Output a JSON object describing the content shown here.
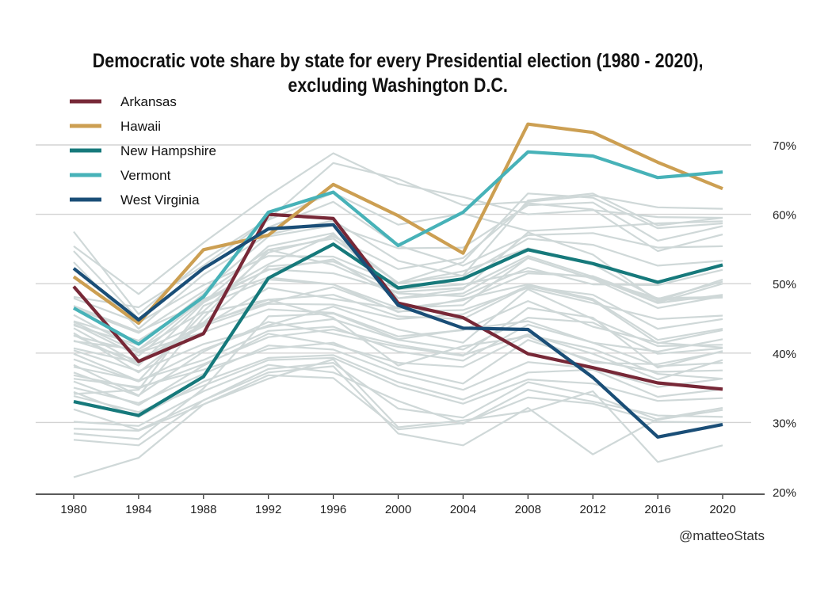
{
  "chart_data": {
    "type": "line",
    "title_line1": "Democratic vote share by state for every Presidential election (1980 - 2020),",
    "title_line2": "excluding Washington D.C.",
    "caption": "@matteoStats",
    "x": [
      1980,
      1984,
      1988,
      1992,
      1996,
      2000,
      2004,
      2008,
      2012,
      2016,
      2020
    ],
    "x_tick_labels": [
      "1980",
      "1984",
      "1988",
      "1992",
      "1996",
      "2000",
      "2004",
      "2008",
      "2012",
      "2016",
      "2020"
    ],
    "ylim": [
      20,
      75
    ],
    "y_ticks": [
      20,
      30,
      40,
      50,
      60,
      70
    ],
    "y_tick_labels": [
      "20%",
      "30%",
      "40%",
      "50%",
      "60%",
      "70%"
    ],
    "y_axis_position": "right",
    "grid": "horizontal",
    "legend_position": "top-left",
    "background_color": "#cfd8d8",
    "highlight_series": [
      {
        "name": "Arkansas",
        "color": "#772837",
        "values": [
          49.6,
          38.8,
          42.8,
          60.0,
          59.4,
          47.2,
          45.1,
          39.9,
          37.9,
          35.7,
          34.8
        ]
      },
      {
        "name": "Hawaii",
        "color": "#cc9f52",
        "values": [
          51.0,
          44.3,
          54.9,
          57.0,
          64.3,
          59.8,
          54.4,
          73.0,
          71.8,
          67.5,
          63.7
        ]
      },
      {
        "name": "New Hampshire",
        "color": "#16797b",
        "values": [
          33.0,
          31.0,
          36.6,
          50.8,
          55.7,
          49.4,
          50.7,
          54.9,
          52.9,
          50.2,
          52.7
        ]
      },
      {
        "name": "Vermont",
        "color": "#47b2b8",
        "values": [
          46.5,
          41.3,
          48.1,
          60.3,
          63.2,
          55.5,
          60.3,
          69.0,
          68.4,
          65.3,
          66.1
        ]
      },
      {
        "name": "West Virginia",
        "color": "#1a4e77",
        "values": [
          52.2,
          44.8,
          52.2,
          57.9,
          58.5,
          46.9,
          43.6,
          43.4,
          36.5,
          27.9,
          29.7
        ]
      }
    ],
    "background_series": [
      [
        57.5,
        45.6,
        53.4,
        59.3,
        67.4,
        65.1,
        61.3,
        61.8,
        62.7,
        61.0,
        60.8
      ],
      [
        55.4,
        48.5,
        55.9,
        62.7,
        68.8,
        64.4,
        62.5,
        60.0,
        60.6,
        59.6,
        59.5
      ],
      [
        54.7,
        44.9,
        52.1,
        58.1,
        61.8,
        55.5,
        52.6,
        57.0,
        57.3,
        55.2,
        55.4
      ],
      [
        53.1,
        43.5,
        51.3,
        57.1,
        59.1,
        53.3,
        51.1,
        56.5,
        55.6,
        52.6,
        53.3
      ],
      [
        48.1,
        46.6,
        52.6,
        59.2,
        63.1,
        58.5,
        60.1,
        57.6,
        58.1,
        58.7,
        59.0
      ],
      [
        44.0,
        41.2,
        48.5,
        54.9,
        56.5,
        50.1,
        51.2,
        62.0,
        63.0,
        58.4,
        59.5
      ],
      [
        45.5,
        40.5,
        46.0,
        54.5,
        56.8,
        52.1,
        53.7,
        61.6,
        60.7,
        54.7,
        57.1
      ],
      [
        46.5,
        42.9,
        48.9,
        56.8,
        58.4,
        55.1,
        55.2,
        61.3,
        61.7,
        56.2,
        58.3
      ],
      [
        44.2,
        39.6,
        47.5,
        52.8,
        57.1,
        50.1,
        53.1,
        63.0,
        62.4,
        58.0,
        58.7
      ],
      [
        42.6,
        38.2,
        47.3,
        55.4,
        57.3,
        47.9,
        49.2,
        57.4,
        54.2,
        47.5,
        50.6
      ],
      [
        47.9,
        44.4,
        49.8,
        54.0,
        53.9,
        50.0,
        51.8,
        55.1,
        52.8,
        47.8,
        50.3
      ],
      [
        46.8,
        43.1,
        47.3,
        52.1,
        51.5,
        48.8,
        49.4,
        54.0,
        51.0,
        47.3,
        50.0
      ],
      [
        44.6,
        41.8,
        47.7,
        52.0,
        53.5,
        47.9,
        48.6,
        53.7,
        50.7,
        46.5,
        48.2
      ],
      [
        42.5,
        40.2,
        44.4,
        52.5,
        53.2,
        49.2,
        49.9,
        51.8,
        50.9,
        47.2,
        48.4
      ],
      [
        40.7,
        38.6,
        43.9,
        49.4,
        47.8,
        46.4,
        47.6,
        51.5,
        51.1,
        47.6,
        48.0
      ],
      [
        41.7,
        40.5,
        47.8,
        50.9,
        49.9,
        45.9,
        47.8,
        49.9,
        47.8,
        41.9,
        43.5
      ],
      [
        41.8,
        38.9,
        44.2,
        47.7,
        48.4,
        45.3,
        44.9,
        49.6,
        48.4,
        43.5,
        44.9
      ],
      [
        42.9,
        37.2,
        44.4,
        47.3,
        49.5,
        46.0,
        46.2,
        49.4,
        47.2,
        44.9,
        45.4
      ],
      [
        43.6,
        38.5,
        43.9,
        47.1,
        47.0,
        44.9,
        45.6,
        49.7,
        47.6,
        41.4,
        43.3
      ],
      [
        44.5,
        40.1,
        43.0,
        46.3,
        45.8,
        42.4,
        43.3,
        47.5,
        43.8,
        41.5,
        40.8
      ],
      [
        39.1,
        35.9,
        40.5,
        44.0,
        46.7,
        43.4,
        41.5,
        49.2,
        44.9,
        41.0,
        41.2
      ],
      [
        40.4,
        37.4,
        41.3,
        43.8,
        44.9,
        41.9,
        40.5,
        45.1,
        44.4,
        39.9,
        40.7
      ],
      [
        38.3,
        33.9,
        40.2,
        44.5,
        42.8,
        40.9,
        39.6,
        46.5,
        45.1,
        37.9,
        40.3
      ],
      [
        38.0,
        36.1,
        39.0,
        43.2,
        43.8,
        40.2,
        38.9,
        44.1,
        41.5,
        38.1,
        38.6
      ],
      [
        36.8,
        34.9,
        38.4,
        42.3,
        43.4,
        41.2,
        39.7,
        42.7,
        39.9,
        36.2,
        39.0
      ],
      [
        35.9,
        32.5,
        38.2,
        42.8,
        41.2,
        38.6,
        38.0,
        42.6,
        40.6,
        37.0,
        36.3
      ],
      [
        36.3,
        35.1,
        37.6,
        40.6,
        41.5,
        37.7,
        35.6,
        41.9,
        38.9,
        37.3,
        37.5
      ],
      [
        35.0,
        32.8,
        37.0,
        41.1,
        40.5,
        37.0,
        34.7,
        38.7,
        37.8,
        35.1,
        36.3
      ],
      [
        34.4,
        30.8,
        35.9,
        39.3,
        39.7,
        35.8,
        33.3,
        37.2,
        37.6,
        33.7,
        34.8
      ],
      [
        33.8,
        31.5,
        35.3,
        39.0,
        39.3,
        35.2,
        32.7,
        36.2,
        35.6,
        33.1,
        33.5
      ],
      [
        31.9,
        28.9,
        33.2,
        37.7,
        38.6,
        32.0,
        30.7,
        35.8,
        33.9,
        30.4,
        31.8
      ],
      [
        30.1,
        29.5,
        34.5,
        38.3,
        37.2,
        33.1,
        29.8,
        34.7,
        33.0,
        31.0,
        30.8
      ],
      [
        29.1,
        28.8,
        32.6,
        36.8,
        36.4,
        29.0,
        29.9,
        33.6,
        32.7,
        30.1,
        30.0
      ],
      [
        27.5,
        26.7,
        33.2,
        37.2,
        38.1,
        28.4,
        26.7,
        32.1,
        25.4,
        30.5,
        32.1
      ],
      [
        22.1,
        24.9,
        32.6,
        36.3,
        39.1,
        29.3,
        30.3,
        31.6,
        34.5,
        24.3,
        26.7
      ],
      [
        28.4,
        27.6,
        34.9,
        45.3,
        45.7,
        42.0,
        43.4,
        44.6,
        41.5,
        40.2,
        42.0
      ],
      [
        37.2,
        33.8,
        45.1,
        54.9,
        52.7,
        48.6,
        48.2,
        52.3,
        49.9,
        49.8,
        52.0
      ],
      [
        34.1,
        34.7,
        46.8,
        50.6,
        49.9,
        46.5,
        46.9,
        53.7,
        50.7,
        47.9,
        48.1
      ],
      [
        39.9,
        36.0,
        45.8,
        47.7,
        45.1,
        38.2,
        41.0,
        42.4,
        38.6,
        38.4,
        40.2
      ]
    ]
  }
}
